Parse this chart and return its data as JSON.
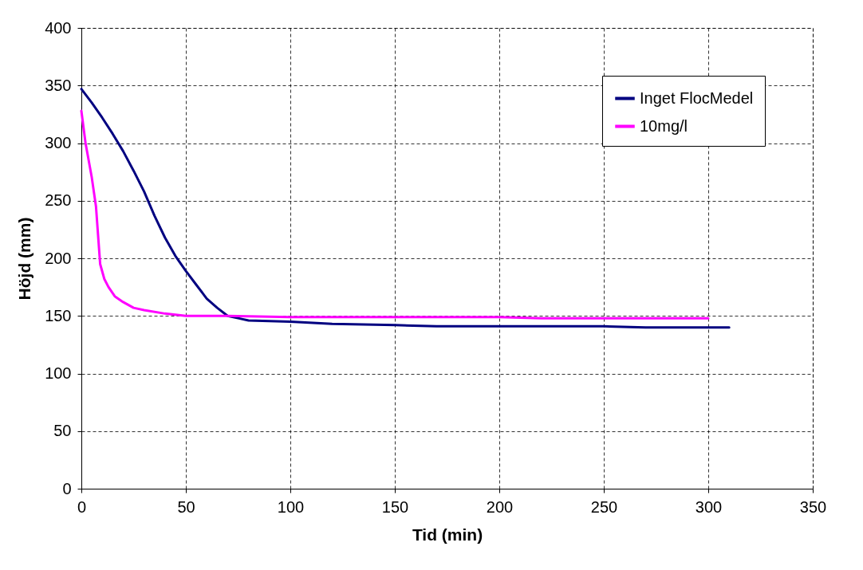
{
  "chart_data": {
    "type": "line",
    "xlabel": "Tid (min)",
    "ylabel": "Höjd (mm)",
    "xlim": [
      0,
      350
    ],
    "xticks": [
      0,
      50,
      100,
      150,
      200,
      250,
      300,
      350
    ],
    "ylim": [
      0,
      400
    ],
    "yticks": [
      0,
      50,
      100,
      150,
      200,
      250,
      300,
      350,
      400
    ],
    "grid": true,
    "legend": "top right",
    "marker": "none",
    "line_style": "solid",
    "series": [
      {
        "name": "Inget FlocMedel",
        "color": "#000080",
        "x": [
          0,
          5,
          10,
          15,
          20,
          25,
          30,
          35,
          40,
          45,
          50,
          55,
          60,
          65,
          70,
          75,
          80,
          100,
          120,
          150,
          170,
          200,
          250,
          270,
          310
        ],
        "values": [
          347,
          335,
          322,
          308,
          293,
          276,
          258,
          237,
          218,
          202,
          189,
          177,
          165,
          157,
          150,
          148,
          146,
          145,
          143,
          142,
          141,
          141,
          141,
          140,
          140
        ]
      },
      {
        "name": "10mg/l",
        "color": "#ff00ff",
        "x": [
          0,
          2,
          5,
          7,
          8,
          9,
          11,
          13,
          16,
          20,
          25,
          30,
          40,
          50,
          70,
          100,
          150,
          200,
          220,
          300
        ],
        "values": [
          328,
          300,
          270,
          245,
          220,
          195,
          182,
          175,
          167,
          162,
          157,
          155,
          152,
          150,
          150,
          149,
          149,
          149,
          148,
          148
        ]
      }
    ]
  }
}
